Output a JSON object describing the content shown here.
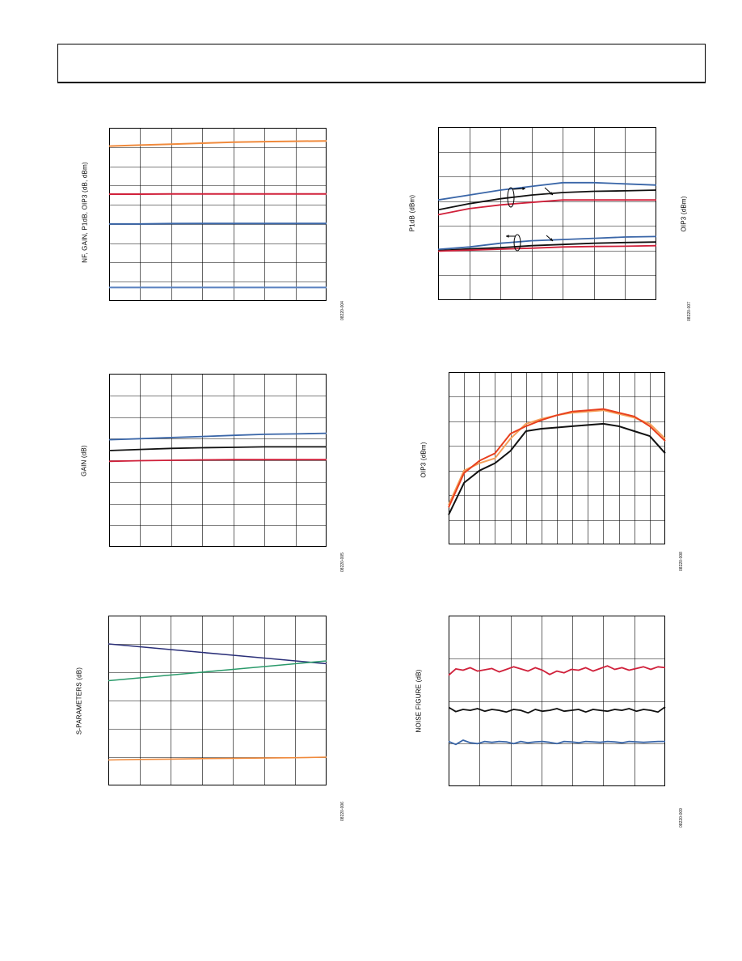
{
  "page": {
    "header_box": ""
  },
  "charts": [
    {
      "id": "c1",
      "ylabel": "NF, GAIN, P1dB, OIP3 (dB, dBm)",
      "figure_id": "08220-004",
      "chart_data": {
        "type": "line",
        "x": [
          0,
          1,
          2,
          3,
          4,
          5,
          6,
          7
        ],
        "ylim": [
          0,
          9
        ],
        "grid": true,
        "series": [
          {
            "color": "#f08a3c",
            "values": [
              8.05,
              8.1,
              8.15,
              8.2,
              8.25,
              8.28,
              8.3,
              8.32
            ]
          },
          {
            "color": "#d0203a",
            "values": [
              5.55,
              5.55,
              5.56,
              5.56,
              5.56,
              5.56,
              5.56,
              5.56
            ]
          },
          {
            "color": "#3a66a8",
            "values": [
              4.0,
              4.0,
              4.02,
              4.03,
              4.03,
              4.03,
              4.03,
              4.03
            ]
          },
          {
            "color": "#5a82c0",
            "values": [
              0.7,
              0.7,
              0.7,
              0.7,
              0.7,
              0.7,
              0.7,
              0.7
            ]
          }
        ]
      }
    },
    {
      "id": "c2",
      "ylabel": "P1dB (dBm)",
      "ylabel_right": "OIP3 (dBm)",
      "figure_id": "08220-007",
      "chart_data": {
        "type": "line",
        "x": [
          0,
          1,
          2,
          3,
          4,
          5,
          6,
          7
        ],
        "ylim": [
          0,
          7
        ],
        "grid": true,
        "series": [
          {
            "color": "#3a66a8",
            "values": [
              4.05,
              4.25,
              4.45,
              4.6,
              4.75,
              4.75,
              4.7,
              4.65
            ]
          },
          {
            "color": "#111111",
            "values": [
              3.65,
              3.9,
              4.1,
              4.25,
              4.35,
              4.4,
              4.42,
              4.45
            ]
          },
          {
            "color": "#d0203a",
            "values": [
              3.45,
              3.7,
              3.85,
              3.95,
              4.05,
              4.05,
              4.05,
              4.05
            ]
          },
          {
            "color": "#3a66a8",
            "values": [
              2.05,
              2.15,
              2.3,
              2.4,
              2.45,
              2.5,
              2.55,
              2.57
            ]
          },
          {
            "color": "#111111",
            "values": [
              2.0,
              2.07,
              2.12,
              2.2,
              2.25,
              2.3,
              2.33,
              2.35
            ]
          },
          {
            "color": "#d0203a",
            "values": [
              1.98,
              2.02,
              2.06,
              2.1,
              2.15,
              2.17,
              2.18,
              2.2
            ]
          }
        ]
      }
    },
    {
      "id": "c3",
      "ylabel": "GAIN (dB)",
      "figure_id": "08220-005",
      "chart_data": {
        "type": "line",
        "x": [
          0,
          1,
          2,
          3,
          4,
          5,
          6,
          7
        ],
        "ylim": [
          0,
          8
        ],
        "grid": true,
        "series": [
          {
            "color": "#3a66a8",
            "values": [
              4.95,
              5.0,
              5.05,
              5.1,
              5.15,
              5.2,
              5.22,
              5.25
            ]
          },
          {
            "color": "#111111",
            "values": [
              4.45,
              4.5,
              4.55,
              4.58,
              4.6,
              4.62,
              4.62,
              4.62
            ]
          },
          {
            "color": "#d0203a",
            "values": [
              3.95,
              3.98,
              4.0,
              4.02,
              4.03,
              4.03,
              4.03,
              4.03
            ]
          }
        ]
      }
    },
    {
      "id": "c4",
      "ylabel": "OIP3 (dBm)",
      "figure_id": "08220-008",
      "chart_data": {
        "type": "line",
        "x": [
          0,
          1,
          2,
          3,
          4,
          5,
          6,
          7,
          8,
          9,
          10,
          11,
          12,
          13,
          14
        ],
        "ylim": [
          0,
          7
        ],
        "grid": true,
        "series": [
          {
            "color": "#f5a05a",
            "values": [
              1.6,
              3.0,
              3.3,
              3.5,
              4.3,
              4.9,
              5.1,
              5.25,
              5.35,
              5.4,
              5.45,
              5.3,
              5.15,
              4.9,
              4.3
            ]
          },
          {
            "color": "#e8401e",
            "values": [
              1.5,
              2.9,
              3.4,
              3.7,
              4.5,
              4.8,
              5.05,
              5.25,
              5.4,
              5.45,
              5.5,
              5.35,
              5.2,
              4.8,
              4.2
            ]
          },
          {
            "color": "#111111",
            "values": [
              1.2,
              2.5,
              3.0,
              3.3,
              3.8,
              4.6,
              4.7,
              4.75,
              4.8,
              4.85,
              4.9,
              4.8,
              4.6,
              4.4,
              3.7
            ]
          }
        ]
      }
    },
    {
      "id": "c5",
      "ylabel": "S-PARAMETERS (dB)",
      "figure_id": "08220-006",
      "chart_data": {
        "type": "line",
        "x": [
          0,
          1,
          2,
          3,
          4,
          5,
          6,
          7
        ],
        "ylim": [
          0,
          6
        ],
        "grid": true,
        "series": [
          {
            "color": "#2a2f78",
            "values": [
              5.0,
              4.9,
              4.8,
              4.7,
              4.6,
              4.5,
              4.4,
              4.3
            ]
          },
          {
            "color": "#2a9a6a",
            "values": [
              3.7,
              3.8,
              3.9,
              4.0,
              4.1,
              4.2,
              4.3,
              4.4
            ]
          },
          {
            "color": "#f08a3c",
            "values": [
              0.9,
              0.92,
              0.93,
              0.95,
              0.96,
              0.97,
              0.98,
              1.0
            ]
          }
        ]
      }
    },
    {
      "id": "c6",
      "ylabel": "NOISE FIGURE (dB)",
      "figure_id": "08220-009",
      "chart_data": {
        "type": "line",
        "x": [
          0,
          1,
          2,
          3,
          4,
          5,
          6,
          7,
          8,
          9,
          10,
          11,
          12,
          13,
          14,
          15,
          16,
          17,
          18,
          19,
          20,
          21,
          22,
          23,
          24,
          25,
          26,
          27,
          28,
          29,
          30
        ],
        "ylim": [
          0,
          4
        ],
        "grid": true,
        "series": [
          {
            "color": "#d0203a",
            "values": [
              2.6,
              2.75,
              2.72,
              2.78,
              2.7,
              2.73,
              2.76,
              2.68,
              2.74,
              2.8,
              2.75,
              2.7,
              2.78,
              2.72,
              2.62,
              2.7,
              2.66,
              2.74,
              2.72,
              2.78,
              2.7,
              2.76,
              2.82,
              2.74,
              2.78,
              2.72,
              2.76,
              2.8,
              2.74,
              2.8,
              2.78
            ]
          },
          {
            "color": "#111111",
            "values": [
              1.85,
              1.75,
              1.8,
              1.78,
              1.82,
              1.76,
              1.8,
              1.78,
              1.74,
              1.8,
              1.78,
              1.72,
              1.8,
              1.76,
              1.78,
              1.82,
              1.76,
              1.78,
              1.8,
              1.74,
              1.8,
              1.78,
              1.76,
              1.8,
              1.78,
              1.82,
              1.76,
              1.8,
              1.78,
              1.74,
              1.86
            ]
          },
          {
            "color": "#3a66a8",
            "values": [
              1.05,
              0.98,
              1.08,
              1.02,
              1.0,
              1.05,
              1.03,
              1.05,
              1.04,
              1.0,
              1.05,
              1.02,
              1.04,
              1.05,
              1.03,
              1.0,
              1.05,
              1.04,
              1.02,
              1.05,
              1.04,
              1.03,
              1.05,
              1.04,
              1.02,
              1.05,
              1.04,
              1.03,
              1.04,
              1.05,
              1.05
            ]
          }
        ]
      }
    }
  ]
}
